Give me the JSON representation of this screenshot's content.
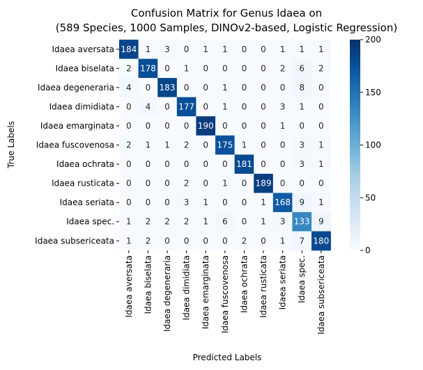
{
  "chart_data": {
    "type": "heatmap",
    "title": "Confusion Matrix for Genus Idaea on",
    "subtitle": "(589 Species, 1000 Samples, DINOv2-based, Logistic Regression)",
    "xlabel": "Predicted Labels",
    "ylabel": "True Labels",
    "categories": [
      "Idaea aversata",
      "Idaea biselata",
      "Idaea degeneraria",
      "Idaea dimidiata",
      "Idaea emarginata",
      "Idaea fuscovenosa",
      "Idaea ochrata",
      "Idaea rusticata",
      "Idaea seriata",
      "Idaea spec.",
      "Idaea subsericeata"
    ],
    "matrix": [
      [
        184,
        1,
        3,
        0,
        1,
        1,
        0,
        0,
        1,
        1,
        1
      ],
      [
        2,
        178,
        0,
        1,
        0,
        0,
        0,
        0,
        2,
        6,
        2
      ],
      [
        4,
        0,
        183,
        0,
        0,
        1,
        0,
        0,
        0,
        8,
        0
      ],
      [
        0,
        4,
        0,
        177,
        0,
        1,
        0,
        0,
        3,
        1,
        0
      ],
      [
        0,
        0,
        0,
        0,
        190,
        0,
        0,
        0,
        1,
        0,
        0
      ],
      [
        2,
        1,
        1,
        2,
        0,
        175,
        1,
        0,
        0,
        3,
        1
      ],
      [
        0,
        0,
        0,
        0,
        0,
        0,
        181,
        0,
        0,
        3,
        1
      ],
      [
        0,
        0,
        0,
        2,
        0,
        1,
        0,
        189,
        0,
        0,
        0
      ],
      [
        0,
        0,
        0,
        3,
        1,
        0,
        0,
        1,
        168,
        9,
        1
      ],
      [
        1,
        2,
        2,
        2,
        1,
        6,
        0,
        1,
        3,
        133,
        9
      ],
      [
        1,
        2,
        0,
        0,
        0,
        0,
        2,
        0,
        1,
        7,
        180
      ]
    ],
    "colorbar": {
      "colormap": "Blues",
      "vmin": 0,
      "vmax": 200,
      "ticks": [
        0,
        50,
        100,
        150,
        200
      ]
    }
  }
}
